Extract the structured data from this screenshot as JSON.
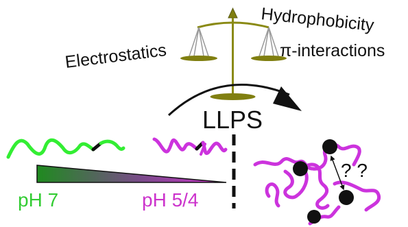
{
  "balance": {
    "left_label": "Electrostatics",
    "right_label_top": "Hydrophobicity",
    "right_label_bottom": "π-interactions"
  },
  "process": {
    "label": "LLPS"
  },
  "ph": {
    "start_label": "pH 7",
    "end_label": "pH 5/4"
  },
  "condensate": {
    "question_marks": "? ?"
  },
  "colors": {
    "balance": "#8a8a14",
    "balance_fill": "#807f10",
    "pan_lines": "#999999",
    "green_chain": "#33ee33",
    "magenta_chain": "#cc33dd",
    "ph7_text": "#33cc33",
    "ph54_text": "#cc33cc",
    "gradient_start": "#22aa22",
    "gradient_end": "#cc33cc",
    "dark": "#111111"
  }
}
